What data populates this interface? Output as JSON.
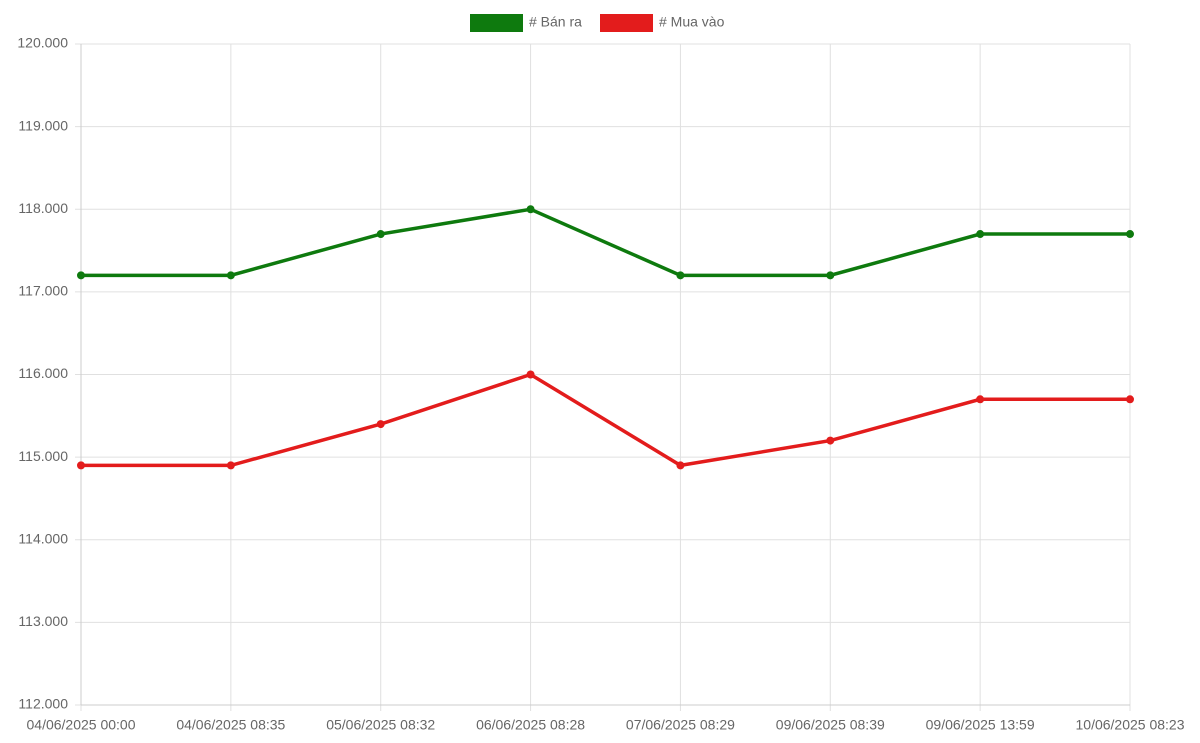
{
  "chart_data": {
    "type": "line",
    "categories": [
      "04/06/2025 00:00",
      "04/06/2025 08:35",
      "05/06/2025 08:32",
      "06/06/2025 08:28",
      "07/06/2025 08:29",
      "09/06/2025 08:39",
      "09/06/2025 13:59",
      "10/06/2025 08:23"
    ],
    "series": [
      {
        "name": "# Bán ra",
        "color": "#0e7a0e",
        "values": [
          117200,
          117200,
          117700,
          118000,
          117200,
          117200,
          117700,
          117700
        ]
      },
      {
        "name": "# Mua vào",
        "color": "#e31c1c",
        "values": [
          114900,
          114900,
          115400,
          116000,
          114900,
          115200,
          115700,
          115700
        ]
      }
    ],
    "ylim": [
      112000,
      120000
    ],
    "yticks": [
      {
        "value": 112000,
        "label": "112.000"
      },
      {
        "value": 113000,
        "label": "113.000"
      },
      {
        "value": 114000,
        "label": "114.000"
      },
      {
        "value": 115000,
        "label": "115.000"
      },
      {
        "value": 116000,
        "label": "116.000"
      },
      {
        "value": 117000,
        "label": "117.000"
      },
      {
        "value": 118000,
        "label": "118.000"
      },
      {
        "value": 119000,
        "label": "119.000"
      },
      {
        "value": 120000,
        "label": "120.000"
      }
    ],
    "grid": true,
    "legend": "top"
  }
}
